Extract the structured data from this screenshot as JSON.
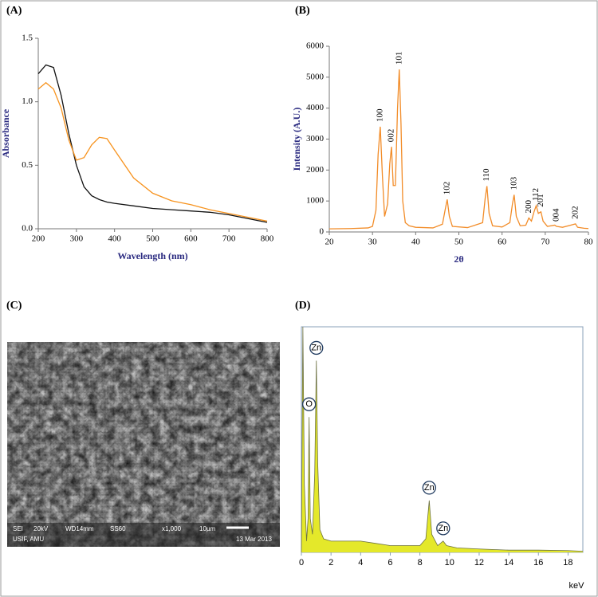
{
  "chart_data": [
    {
      "type": "line",
      "panel_label": "(A)",
      "xlabel": "Wavelength (nm)",
      "ylabel": "Absorbance",
      "x": [
        200,
        220,
        240,
        260,
        280,
        300,
        320,
        340,
        360,
        380,
        400,
        450,
        500,
        550,
        600,
        650,
        700,
        750,
        800
      ],
      "series": [
        {
          "color": "#111111",
          "values": [
            1.22,
            1.29,
            1.27,
            1.05,
            0.75,
            0.5,
            0.33,
            0.26,
            0.23,
            0.21,
            0.2,
            0.18,
            0.16,
            0.15,
            0.14,
            0.13,
            0.11,
            0.08,
            0.05
          ]
        },
        {
          "color": "#f7931e",
          "values": [
            1.1,
            1.15,
            1.1,
            0.95,
            0.7,
            0.54,
            0.56,
            0.66,
            0.72,
            0.71,
            0.62,
            0.4,
            0.28,
            0.22,
            0.19,
            0.15,
            0.12,
            0.09,
            0.06
          ]
        }
      ],
      "xlim": [
        200,
        800
      ],
      "xticks": [
        200,
        300,
        400,
        500,
        600,
        700,
        800
      ],
      "ylim": [
        0,
        1.5
      ],
      "yticks": [
        {
          "value": 0,
          "label": "0.0"
        },
        0.5,
        {
          "value": 1,
          "label": "1.0"
        },
        1.5
      ]
    },
    {
      "type": "line",
      "panel_label": "(B)",
      "xlabel": "2θ",
      "ylabel": "Intensity (A.U.)",
      "x": [
        20,
        25,
        29,
        30,
        30.8,
        31.3,
        31.8,
        32.3,
        32.8,
        33.5,
        34.0,
        34.4,
        34.8,
        35.3,
        35.8,
        36.2,
        36.6,
        37.0,
        37.6,
        38.5,
        40,
        44,
        46.2,
        46.8,
        47.3,
        47.8,
        48.5,
        52,
        55.5,
        56.1,
        56.5,
        57.0,
        57.8,
        60,
        61.8,
        62.4,
        62.8,
        63.3,
        64.2,
        65.5,
        66.2,
        66.8,
        67.4,
        67.9,
        68.4,
        69.0,
        69.5,
        70.5,
        72.2,
        72.6,
        74,
        76.5,
        77.0,
        77.5,
        79,
        80
      ],
      "series": [
        {
          "color": "#f28c28",
          "values": [
            100,
            110,
            130,
            180,
            700,
            2500,
            3400,
            1800,
            500,
            900,
            2200,
            2750,
            1500,
            1500,
            4000,
            5250,
            3500,
            1000,
            300,
            200,
            150,
            130,
            250,
            700,
            1050,
            500,
            180,
            140,
            300,
            1100,
            1480,
            600,
            200,
            160,
            300,
            900,
            1200,
            500,
            200,
            220,
            450,
            350,
            650,
            850,
            600,
            650,
            350,
            180,
            220,
            180,
            150,
            240,
            260,
            150,
            120,
            110
          ]
        }
      ],
      "xlim": [
        20,
        80
      ],
      "xticks": [
        20,
        30,
        40,
        50,
        60,
        70,
        80
      ],
      "ylim": [
        0,
        6000
      ],
      "yticks": [
        0,
        1000,
        2000,
        3000,
        4000,
        5000,
        6000
      ],
      "annotations": [
        {
          "text": "100",
          "x": 31.8,
          "y": 3400
        },
        {
          "text": "002",
          "x": 34.4,
          "y": 2750
        },
        {
          "text": "101",
          "x": 36.2,
          "y": 5250
        },
        {
          "text": "102",
          "x": 47.3,
          "y": 1050
        },
        {
          "text": "110",
          "x": 56.5,
          "y": 1480
        },
        {
          "text": "103",
          "x": 62.8,
          "y": 1200
        },
        {
          "text": "200",
          "x": 66.2,
          "y": 450
        },
        {
          "text": "112",
          "x": 67.9,
          "y": 850
        },
        {
          "text": "201",
          "x": 69.0,
          "y": 650
        },
        {
          "text": "004",
          "x": 72.6,
          "y": 180
        },
        {
          "text": "202",
          "x": 77.0,
          "y": 260
        }
      ]
    },
    {
      "type": "area",
      "panel_label": "(D)",
      "xlabel": "keV",
      "x": [
        0,
        0.1,
        0.2,
        0.35,
        0.45,
        0.52,
        0.6,
        0.75,
        0.9,
        1.01,
        1.1,
        1.25,
        1.5,
        2,
        3,
        4,
        5,
        6,
        7,
        8,
        8.4,
        8.63,
        8.8,
        9.2,
        9.57,
        9.8,
        10.5,
        12,
        14,
        16,
        18,
        19
      ],
      "series": [
        {
          "color": "#e4e82a",
          "values": [
            0,
            100,
            30,
            5,
            15,
            60,
            15,
            8,
            35,
            85,
            40,
            10,
            6,
            5,
            5,
            5,
            4,
            3,
            3,
            3,
            6,
            23,
            8,
            3,
            5,
            3,
            2,
            1.5,
            1,
            1,
            0.8,
            0.5
          ]
        }
      ],
      "xlim": [
        0,
        19
      ],
      "xticks": [
        0,
        2,
        4,
        6,
        8,
        10,
        12,
        14,
        16,
        18
      ],
      "ylim": [
        0,
        100
      ],
      "annotations": [
        {
          "text": "O",
          "x": 0.52,
          "y": 60
        },
        {
          "text": "Zn",
          "x": 1.01,
          "y": 85
        },
        {
          "text": "Zn",
          "x": 8.63,
          "y": 23
        },
        {
          "text": "Zn",
          "x": 9.57,
          "y": 5
        }
      ]
    }
  ],
  "sem_image": {
    "panel_label": "(C)",
    "info": [
      "SEI",
      "20kV",
      "WD14mm",
      "SS60",
      "x1,000",
      "10µm",
      "USIF, AMU",
      "13 Mar 2013"
    ]
  }
}
